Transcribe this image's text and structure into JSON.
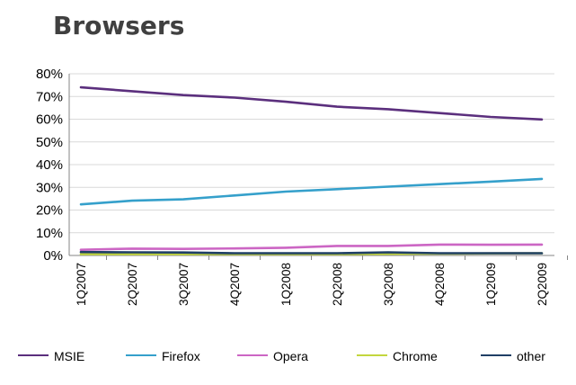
{
  "chart_data": {
    "type": "line",
    "title": "Browsers",
    "xlabel": "",
    "ylabel": "",
    "categories": [
      "1Q2007",
      "2Q2007",
      "3Q2007",
      "4Q2007",
      "1Q2008",
      "2Q2008",
      "3Q2008",
      "4Q2008",
      "1Q2009",
      "2Q2009"
    ],
    "ylim": [
      0,
      80
    ],
    "yticks": [
      "0%",
      "10%",
      "20%",
      "30%",
      "40%",
      "50%",
      "60%",
      "70%",
      "80%"
    ],
    "grid": true,
    "legend_position": "bottom",
    "series": [
      {
        "name": "MSIE",
        "color": "#5b2f7d",
        "values": [
          74.0,
          72.3,
          70.6,
          69.5,
          67.7,
          65.5,
          64.4,
          62.7,
          61.0,
          59.9
        ]
      },
      {
        "name": "Firefox",
        "color": "#35a0cb",
        "values": [
          22.5,
          24.1,
          24.7,
          26.4,
          28.1,
          29.2,
          30.3,
          31.4,
          32.5,
          33.7
        ]
      },
      {
        "name": "Opera",
        "color": "#cc66c4",
        "values": [
          2.5,
          3.0,
          2.9,
          3.1,
          3.4,
          4.2,
          4.2,
          4.8,
          4.7,
          4.8
        ]
      },
      {
        "name": "Chrome",
        "color": "#c3d63e",
        "values": [
          0.6,
          0.6,
          0.6,
          0.6,
          0.6,
          0.6,
          0.7,
          0.8,
          0.9,
          1.0
        ]
      },
      {
        "name": "other",
        "color": "#1f3f66",
        "values": [
          1.5,
          1.4,
          1.3,
          1.0,
          1.0,
          1.0,
          1.4,
          1.0,
          1.0,
          1.0
        ]
      }
    ]
  }
}
